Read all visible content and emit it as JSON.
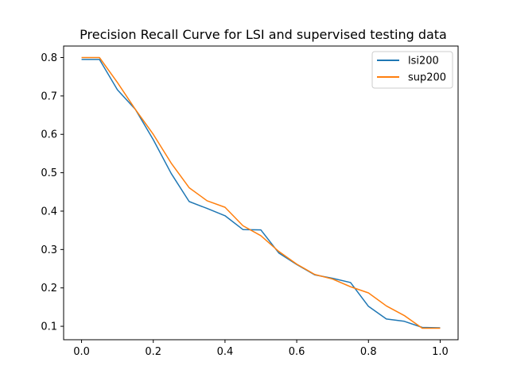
{
  "chart_data": {
    "type": "line",
    "title": "Precision Recall Curve for LSI and supervised testing data",
    "xlabel": "",
    "ylabel": "",
    "xlim": [
      -0.05,
      1.05
    ],
    "ylim": [
      0.065,
      0.83
    ],
    "xticks": [
      "0.0",
      "0.2",
      "0.4",
      "0.6",
      "0.8",
      "1.0"
    ],
    "yticks": [
      "0.1",
      "0.2",
      "0.3",
      "0.4",
      "0.5",
      "0.6",
      "0.7",
      "0.8"
    ],
    "grid": false,
    "legend_position": "top-right",
    "series": [
      {
        "name": "lsi200",
        "color": "#1f77b4",
        "x": [
          0.0,
          0.05,
          0.1,
          0.15,
          0.2,
          0.25,
          0.3,
          0.35,
          0.4,
          0.45,
          0.5,
          0.55,
          0.6,
          0.65,
          0.7,
          0.75,
          0.8,
          0.85,
          0.9,
          0.95,
          1.0
        ],
        "y": [
          0.795,
          0.795,
          0.716,
          0.665,
          0.586,
          0.498,
          0.425,
          0.407,
          0.388,
          0.352,
          0.351,
          0.291,
          0.261,
          0.234,
          0.225,
          0.214,
          0.152,
          0.119,
          0.113,
          0.097,
          0.096
        ]
      },
      {
        "name": "sup200",
        "color": "#ff7f0e",
        "x": [
          0.0,
          0.05,
          0.1,
          0.15,
          0.2,
          0.25,
          0.3,
          0.35,
          0.4,
          0.45,
          0.5,
          0.55,
          0.6,
          0.65,
          0.7,
          0.75,
          0.8,
          0.85,
          0.9,
          0.95,
          1.0
        ],
        "y": [
          0.8,
          0.8,
          0.735,
          0.665,
          0.6,
          0.525,
          0.461,
          0.427,
          0.41,
          0.362,
          0.336,
          0.295,
          0.262,
          0.235,
          0.223,
          0.203,
          0.187,
          0.153,
          0.128,
          0.095,
          0.095
        ]
      }
    ]
  }
}
